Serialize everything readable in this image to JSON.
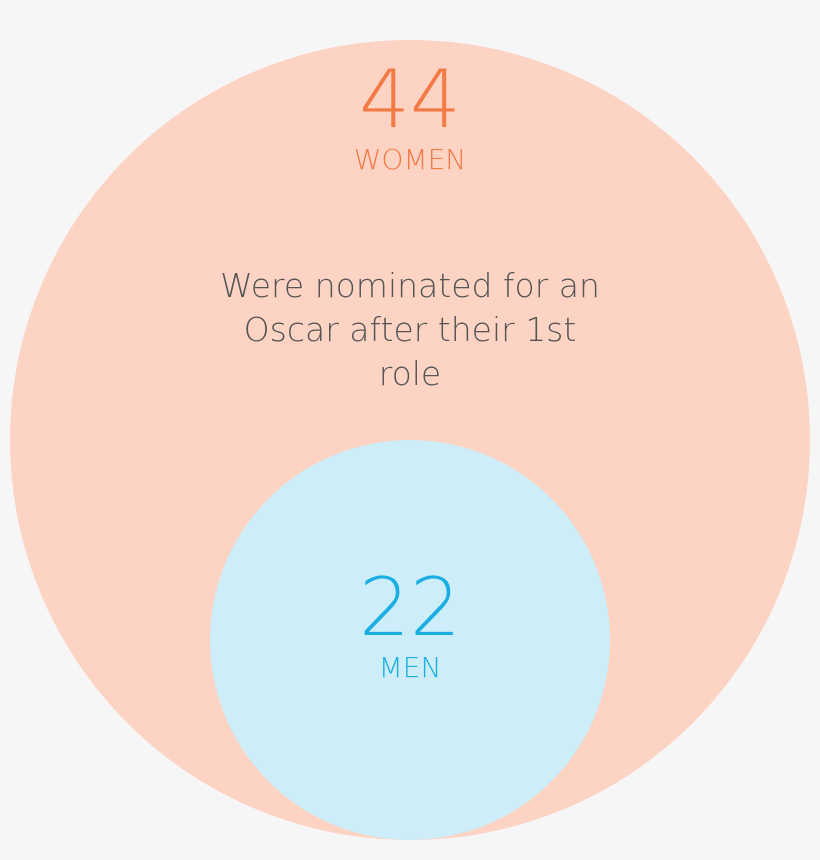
{
  "chart_data": {
    "type": "nested-circles",
    "annotation": "Were nominated for an Oscar after their 1st role",
    "categories": [
      "WOMEN",
      "MEN"
    ],
    "values": [
      44,
      22
    ],
    "colors": [
      "#fdd3c4",
      "#cdedf8"
    ],
    "text_colors": [
      "#f47a45",
      "#1aaee3"
    ]
  }
}
